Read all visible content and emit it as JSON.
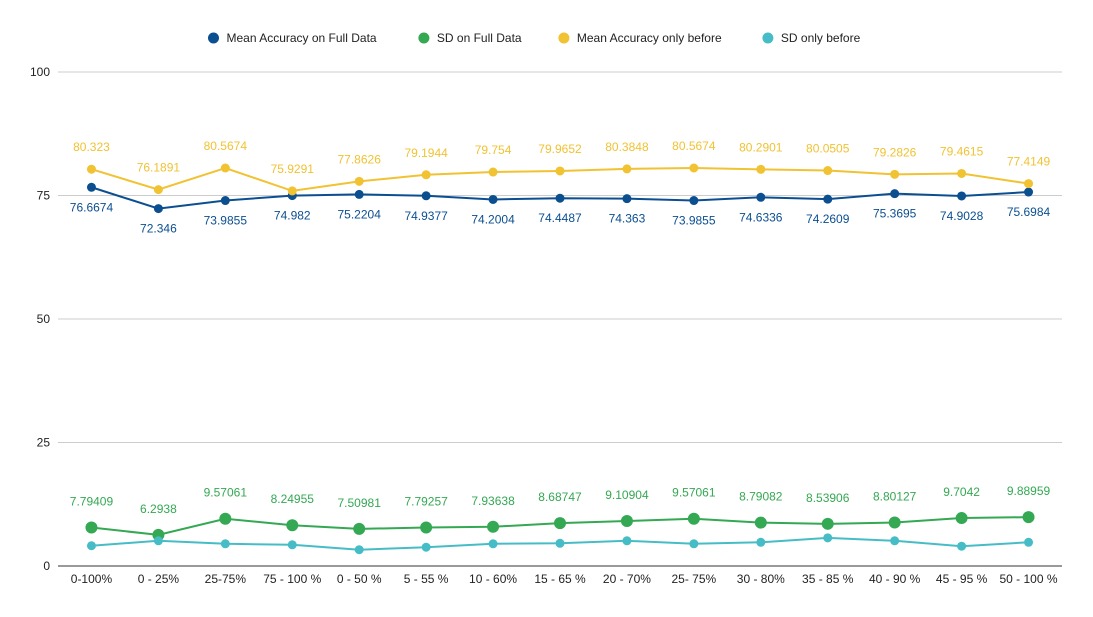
{
  "chart_data": {
    "type": "line",
    "title": "",
    "xlabel": "",
    "ylabel": "",
    "categories": [
      "0-100%",
      "0 - 25%",
      "25-75%",
      "75 - 100 %",
      "0 - 50 %",
      "5 - 55 %",
      "10 - 60%",
      "15 - 65 %",
      "20 - 70%",
      "25- 75%",
      "30 - 80%",
      "35 - 85 %",
      "40 - 90 %",
      "45 - 95 %",
      "50 - 100 %"
    ],
    "ylim": [
      0,
      100
    ],
    "yticks": [
      0,
      25,
      50,
      75,
      100
    ],
    "ytick_labels": [
      "0",
      "25",
      "50",
      "75",
      "100"
    ],
    "grid": true,
    "legend_position": "top",
    "series": [
      {
        "name": "Mean Accuracy on Full Data",
        "color": "#0b4f91",
        "values": [
          76.6674,
          72.346,
          73.9855,
          74.982,
          75.2204,
          74.9377,
          74.2004,
          74.4487,
          74.363,
          73.9855,
          74.6336,
          74.2609,
          75.3695,
          74.9028,
          75.6984
        ],
        "labels": [
          "76.6674",
          "72.346",
          "73.9855",
          "74.982",
          "75.2204",
          "74.9377",
          "74.2004",
          "74.4487",
          "74.363",
          "73.9855",
          "74.6336",
          "74.2609",
          "75.3695",
          "74.9028",
          "75.6984"
        ]
      },
      {
        "name": "SD on Full Data",
        "color": "#34a853",
        "values": [
          7.79409,
          6.2938,
          9.57061,
          8.24955,
          7.50981,
          7.79257,
          7.93638,
          8.68747,
          9.10904,
          9.57061,
          8.79082,
          8.53906,
          8.80127,
          9.7042,
          9.88959
        ],
        "labels": [
          "7.79409",
          "6.2938",
          "9.57061",
          "8.24955",
          "7.50981",
          "7.79257",
          "7.93638",
          "8.68747",
          "9.10904",
          "9.57061",
          "8.79082",
          "8.53906",
          "8.80127",
          "9.7042",
          "9.88959"
        ]
      },
      {
        "name": "Mean Accuracy only before",
        "color": "#f1c232",
        "values": [
          80.323,
          76.1891,
          80.5674,
          75.9291,
          77.8626,
          79.1944,
          79.754,
          79.9652,
          80.3848,
          80.5674,
          80.2901,
          80.0505,
          79.2826,
          79.4615,
          77.4149
        ],
        "labels": [
          "80.323",
          "76.1891",
          "80.5674",
          "75.9291",
          "77.8626",
          "79.1944",
          "79.754",
          "79.9652",
          "80.3848",
          "80.5674",
          "80.2901",
          "80.0505",
          "79.2826",
          "79.4615",
          "77.4149"
        ]
      },
      {
        "name": "SD only before",
        "color": "#46bdc6",
        "values": [
          4.1,
          5.1,
          4.5,
          4.3,
          3.3,
          3.8,
          4.5,
          4.6,
          5.1,
          4.5,
          4.8,
          5.7,
          5.1,
          4.0,
          4.8
        ],
        "labels": []
      }
    ]
  }
}
